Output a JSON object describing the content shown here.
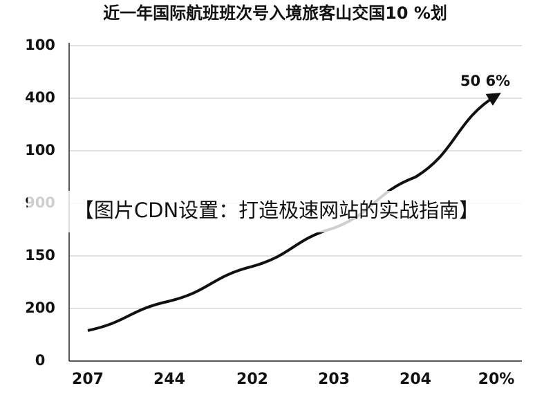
{
  "chart_data": {
    "type": "line",
    "title": "近一年国际航班班次号入境旅客山交国10 %划",
    "categories": [
      "207",
      "244",
      "202",
      "203",
      "204",
      "20%"
    ],
    "values": [
      0.58,
      1.14,
      1.8,
      2.53,
      3.5,
      5.05
    ],
    "color": "#111111",
    "ylim": [
      0,
      6
    ],
    "yticks": [
      0,
      {
        "value": 1,
        "label": "200"
      },
      {
        "value": 2,
        "label": "150"
      },
      {
        "value": 3,
        "label": "900"
      },
      {
        "value": 4,
        "label": "100"
      },
      {
        "value": 5,
        "label": "400"
      },
      {
        "value": 6,
        "label": "100"
      }
    ],
    "grid": true,
    "annotations": [
      "50 6%"
    ],
    "banner": "【图片CDN设置：打造极速网站的实战指南】"
  }
}
